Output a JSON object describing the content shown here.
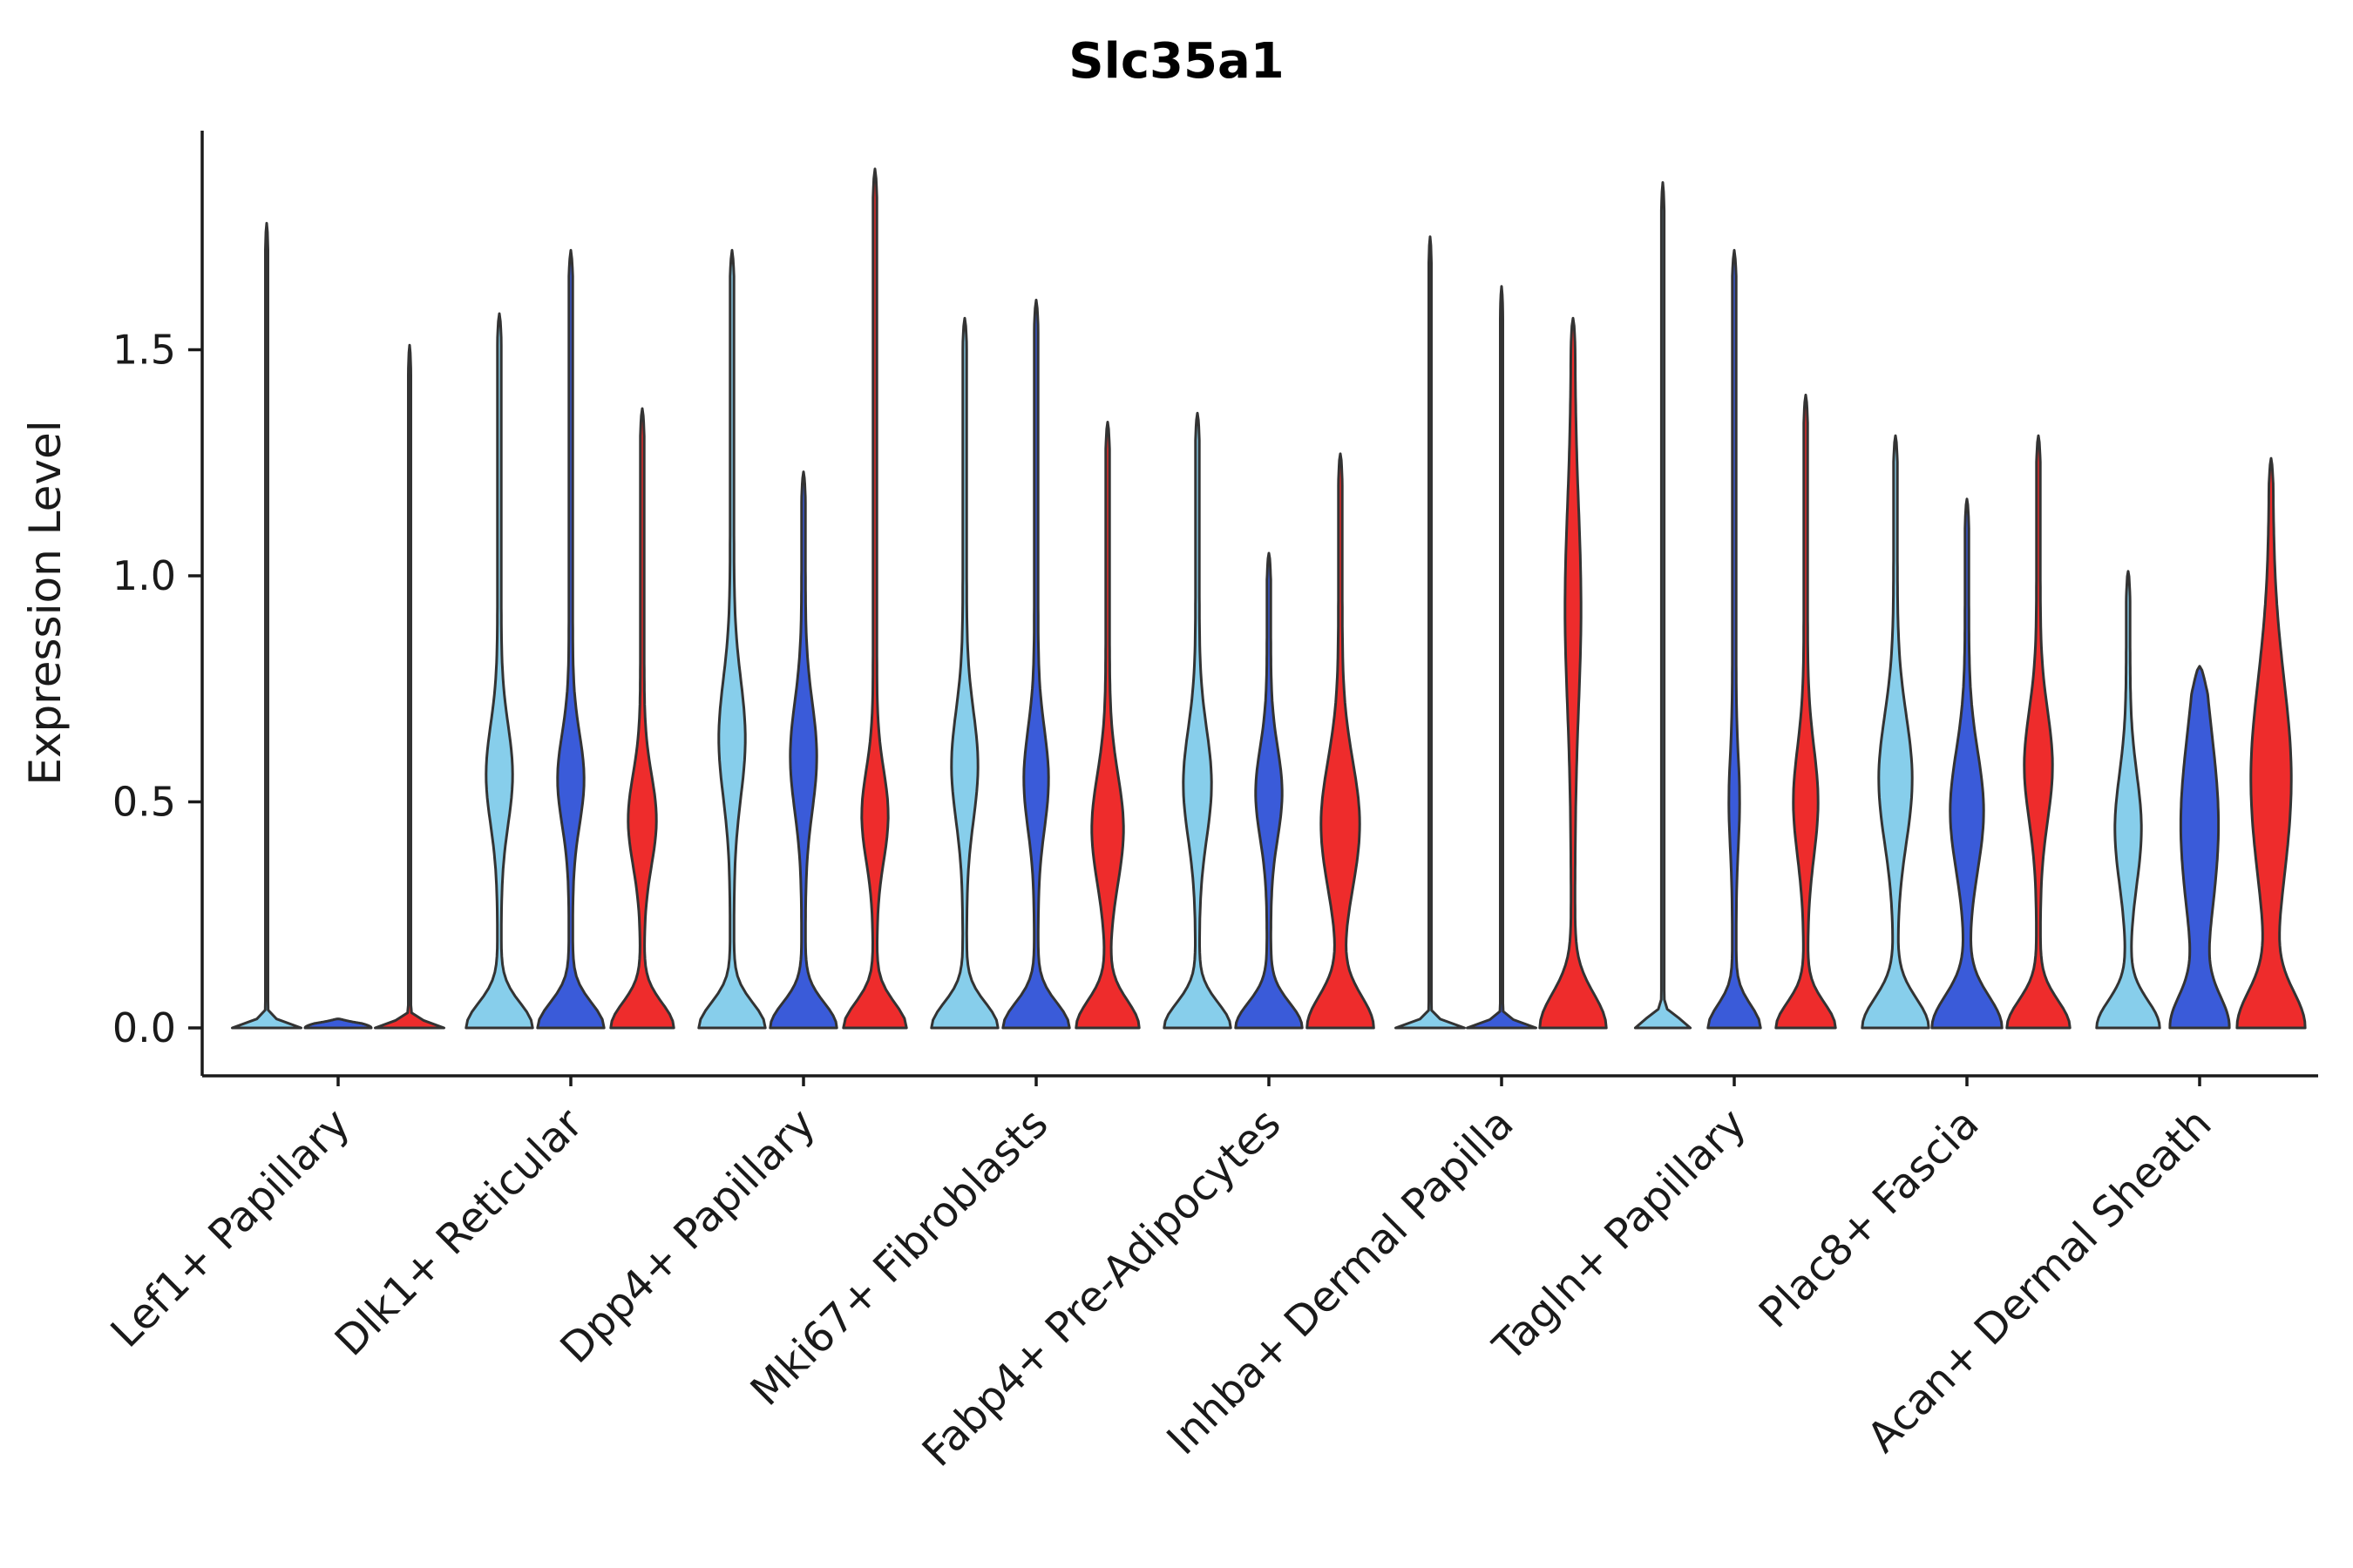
{
  "chart_data": {
    "type": "violin",
    "title": "Slc35a1",
    "xlabel": "",
    "ylabel": "Expression Level",
    "yticks": [
      0.0,
      0.5,
      1.0,
      1.5
    ],
    "ylim": [
      0,
      1.99
    ],
    "grid": false,
    "legend": "none",
    "series_colors": {
      "light_blue": "#87CEEB",
      "blue": "#3A5BD9",
      "red": "#EE2C2C"
    },
    "outline_color": "#333333",
    "axis_color": "#1a1a1a",
    "text_color": "#1a1a1a",
    "series_order": [
      "light_blue",
      "blue",
      "red"
    ],
    "groups": [
      {
        "label": "Lef1+ Papillary",
        "violins": [
          {
            "color": "light_blue",
            "max": 1.78,
            "base_w": 38,
            "base_h": 0.012,
            "bulge_y": 0,
            "bulge_w": 0,
            "bulge_h": 1,
            "spike": 1.5
          },
          {
            "color": "blue",
            "max": 0.02,
            "base_w": 38,
            "base_h": 0.012,
            "bulge_y": 0,
            "bulge_w": 0,
            "bulge_h": 1,
            "spike": 0
          },
          {
            "color": "red",
            "max": 1.51,
            "base_w": 38,
            "base_h": 0.012,
            "bulge_y": 0,
            "bulge_w": 0,
            "bulge_h": 1,
            "spike": 1.5
          }
        ]
      },
      {
        "label": "Dlk1+ Reticular",
        "violins": [
          {
            "color": "light_blue",
            "max": 1.58,
            "base_w": 36,
            "base_h": 0.055,
            "bulge_y": 0.56,
            "bulge_w": 13,
            "bulge_h": 0.11,
            "spike": 2.2
          },
          {
            "color": "blue",
            "max": 1.72,
            "base_w": 36,
            "base_h": 0.055,
            "bulge_y": 0.55,
            "bulge_w": 13,
            "bulge_h": 0.1,
            "spike": 2.2
          },
          {
            "color": "red",
            "max": 1.37,
            "base_w": 34,
            "base_h": 0.055,
            "bulge_y": 0.46,
            "bulge_w": 14,
            "bulge_h": 0.1,
            "spike": 2.2
          }
        ]
      },
      {
        "label": "Dpp4+ Papillary",
        "violins": [
          {
            "color": "light_blue",
            "max": 1.72,
            "base_w": 36,
            "base_h": 0.055,
            "bulge_y": 0.64,
            "bulge_w": 13,
            "bulge_h": 0.13,
            "spike": 2.2
          },
          {
            "color": "blue",
            "max": 1.23,
            "base_w": 36,
            "base_h": 0.055,
            "bulge_y": 0.6,
            "bulge_w": 13,
            "bulge_h": 0.12,
            "spike": 2.2
          },
          {
            "color": "red",
            "max": 1.9,
            "base_w": 34,
            "base_h": 0.055,
            "bulge_y": 0.47,
            "bulge_w": 13,
            "bulge_h": 0.1,
            "spike": 2.2
          }
        ]
      },
      {
        "label": "Mki67+ Fibroblasts",
        "violins": [
          {
            "color": "light_blue",
            "max": 1.57,
            "base_w": 36,
            "base_h": 0.055,
            "bulge_y": 0.58,
            "bulge_w": 13,
            "bulge_h": 0.12,
            "spike": 2.2
          },
          {
            "color": "blue",
            "max": 1.61,
            "base_w": 36,
            "base_h": 0.055,
            "bulge_y": 0.55,
            "bulge_w": 12,
            "bulge_h": 0.11,
            "spike": 2.2
          },
          {
            "color": "red",
            "max": 1.34,
            "base_w": 34,
            "base_h": 0.06,
            "bulge_y": 0.44,
            "bulge_w": 16,
            "bulge_h": 0.12,
            "spike": 2.2
          }
        ]
      },
      {
        "label": "Fabp4+ Pre-Adipocytes",
        "violins": [
          {
            "color": "light_blue",
            "max": 1.36,
            "base_w": 36,
            "base_h": 0.055,
            "bulge_y": 0.54,
            "bulge_w": 14,
            "bulge_h": 0.12,
            "spike": 2.2
          },
          {
            "color": "blue",
            "max": 1.05,
            "base_w": 36,
            "base_h": 0.055,
            "bulge_y": 0.52,
            "bulge_w": 13,
            "bulge_h": 0.1,
            "spike": 2.2
          },
          {
            "color": "red",
            "max": 1.27,
            "base_w": 36,
            "base_h": 0.07,
            "bulge_y": 0.45,
            "bulge_w": 20,
            "bulge_h": 0.14,
            "spike": 2.2
          }
        ]
      },
      {
        "label": "Inhba+ Dermal Papilla",
        "violins": [
          {
            "color": "light_blue",
            "max": 1.75,
            "base_w": 38,
            "base_h": 0.012,
            "bulge_y": 0,
            "bulge_w": 0,
            "bulge_h": 1,
            "spike": 1.5
          },
          {
            "color": "blue",
            "max": 1.64,
            "base_w": 38,
            "base_h": 0.012,
            "bulge_y": 0,
            "bulge_w": 0,
            "bulge_h": 1,
            "spike": 1.5
          },
          {
            "color": "red",
            "max": 1.57,
            "base_w": 36,
            "base_h": 0.075,
            "bulge_y": 0.93,
            "bulge_w": 7,
            "bulge_h": 0.22,
            "spike": 2.2
          }
        ]
      },
      {
        "label": "Tagln+ Papillary",
        "violins": [
          {
            "color": "light_blue",
            "max": 1.87,
            "base_w": 30,
            "base_h": 0.02,
            "bulge_y": 0,
            "bulge_w": 0,
            "bulge_h": 1,
            "spike": 1.6
          },
          {
            "color": "blue",
            "max": 1.72,
            "base_w": 28,
            "base_h": 0.05,
            "bulge_y": 0.5,
            "bulge_w": 4,
            "bulge_h": 0.1,
            "spike": 2.2
          },
          {
            "color": "red",
            "max": 1.4,
            "base_w": 32,
            "base_h": 0.055,
            "bulge_y": 0.5,
            "bulge_w": 12,
            "bulge_h": 0.12,
            "spike": 2.2
          }
        ]
      },
      {
        "label": "Plac8+ Fascia",
        "violins": [
          {
            "color": "light_blue",
            "max": 1.31,
            "base_w": 36,
            "base_h": 0.065,
            "bulge_y": 0.55,
            "bulge_w": 17,
            "bulge_h": 0.14,
            "spike": 2.2
          },
          {
            "color": "blue",
            "max": 1.17,
            "base_w": 38,
            "base_h": 0.07,
            "bulge_y": 0.48,
            "bulge_w": 17,
            "bulge_h": 0.13,
            "spike": 2.2
          },
          {
            "color": "red",
            "max": 1.31,
            "base_w": 34,
            "base_h": 0.06,
            "bulge_y": 0.58,
            "bulge_w": 14,
            "bulge_h": 0.12,
            "spike": 2.2
          }
        ]
      },
      {
        "label": "Acan+ Dermal Sheath",
        "violins": [
          {
            "color": "light_blue",
            "max": 1.01,
            "base_w": 34,
            "base_h": 0.06,
            "bulge_y": 0.44,
            "bulge_w": 13,
            "bulge_h": 0.12,
            "spike": 2.2
          },
          {
            "color": "blue",
            "max": 0.8,
            "base_w": 30,
            "base_h": 0.07,
            "bulge_y": 0.45,
            "bulge_w": 19,
            "bulge_h": 0.2,
            "spike": 2.6
          },
          {
            "color": "red",
            "max": 1.26,
            "base_w": 36,
            "base_h": 0.08,
            "bulge_y": 0.55,
            "bulge_w": 21,
            "bulge_h": 0.22,
            "spike": 2.2
          }
        ]
      }
    ]
  }
}
